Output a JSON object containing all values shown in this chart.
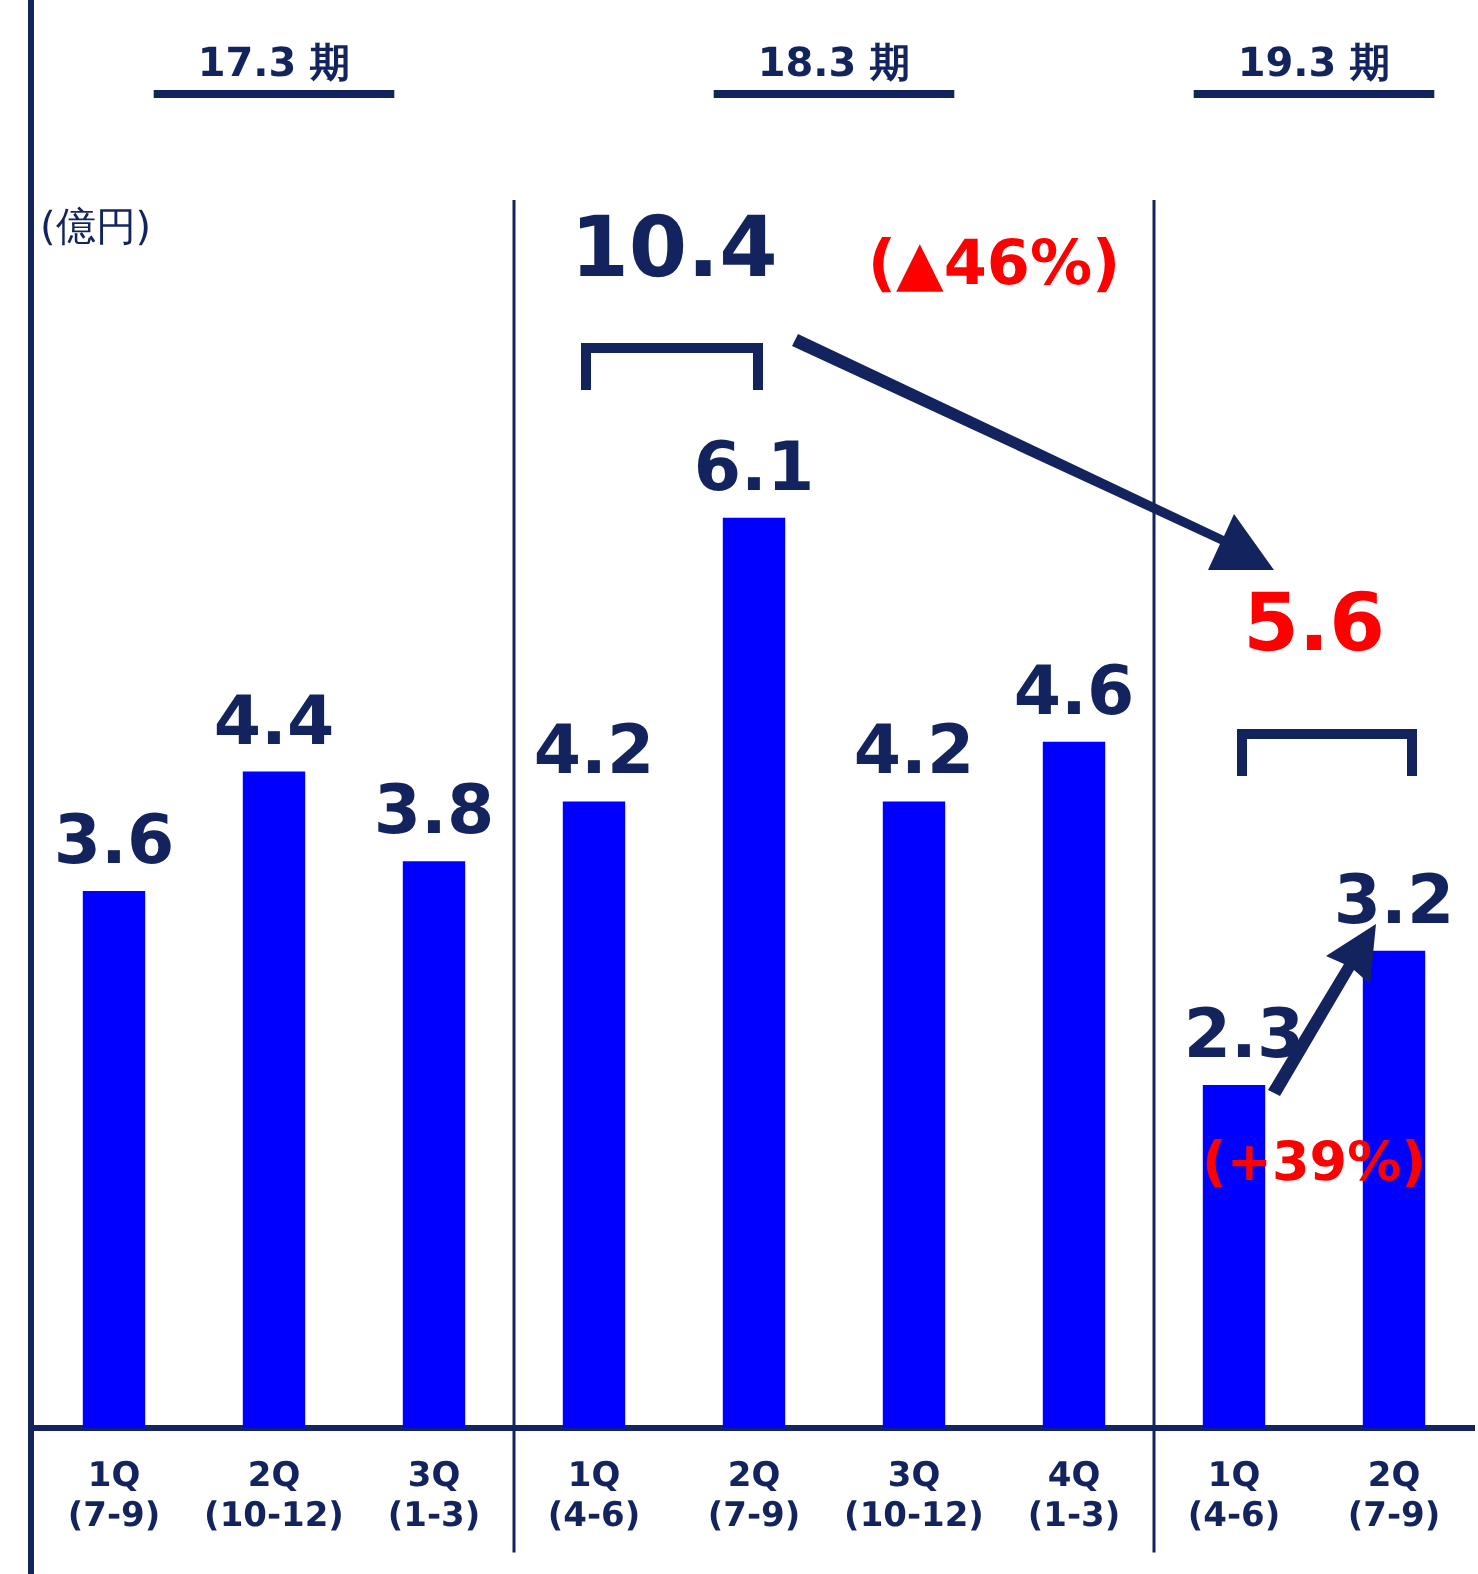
{
  "chart_data": {
    "type": "bar",
    "categories": [
      "1Q\n(7-9)",
      "2Q\n(10-12)",
      "3Q\n(1-3)",
      "1Q\n(4-6)",
      "2Q\n(7-9)",
      "3Q\n(10-12)",
      "4Q\n(1-3)",
      "1Q\n(4-6)",
      "2Q\n(7-9)"
    ],
    "values": [
      3.6,
      4.4,
      3.8,
      4.2,
      6.1,
      4.2,
      4.6,
      2.3,
      3.2
    ],
    "color": "#0000ff",
    "data_labels": true,
    "grid": false,
    "legend": false,
    "annotations": [
      "17.3 期",
      "18.3 期",
      "19.3 期",
      "10.4",
      "(▲46%)",
      "5.6",
      "(+39%)",
      "(億円)"
    ]
  }
}
